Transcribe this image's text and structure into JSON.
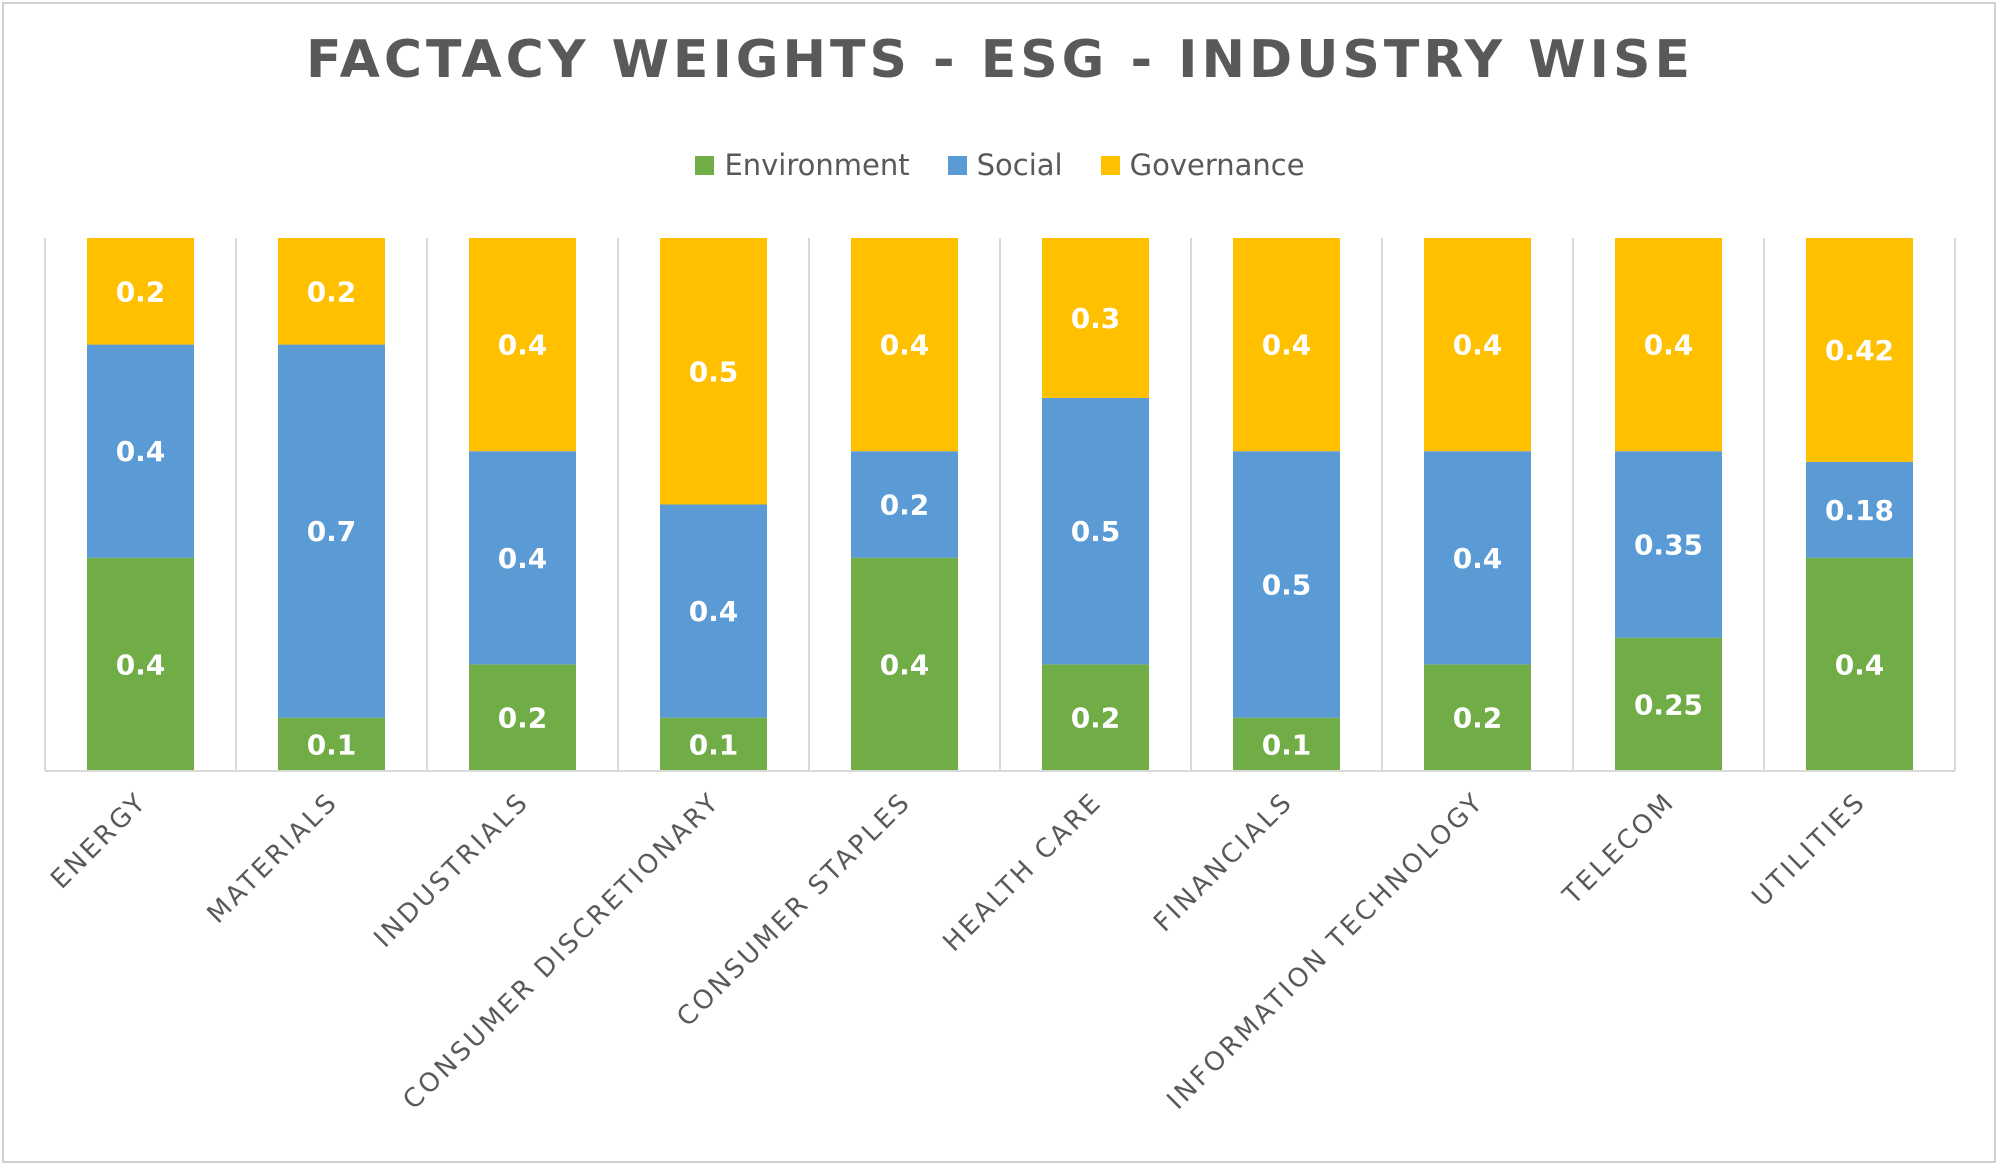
{
  "chart_data": {
    "type": "bar",
    "stacked": true,
    "title": "FACTACY WEIGHTS - ESG - INDUSTRY WISE",
    "categories": [
      "ENERGY",
      "MATERIALS",
      "INDUSTRIALS",
      "CONSUMER DISCRETIONARY",
      "CONSUMER STAPLES",
      "HEALTH CARE",
      "FINANCIALS",
      "INFORMATION TECHNOLOGY",
      "TELECOM",
      "UTILITIES"
    ],
    "series": [
      {
        "name": "Environment",
        "color": "#70ad47",
        "values": [
          0.4,
          0.1,
          0.2,
          0.1,
          0.4,
          0.2,
          0.1,
          0.2,
          0.25,
          0.4
        ]
      },
      {
        "name": "Social",
        "color": "#5b9bd5",
        "values": [
          0.4,
          0.7,
          0.4,
          0.4,
          0.2,
          0.5,
          0.5,
          0.4,
          0.35,
          0.18
        ]
      },
      {
        "name": "Governance",
        "color": "#ffc000",
        "values": [
          0.2,
          0.2,
          0.4,
          0.5,
          0.4,
          0.3,
          0.4,
          0.4,
          0.4,
          0.42
        ]
      }
    ],
    "ylim": [
      0,
      1
    ],
    "grid": "vertical category separators",
    "legend": "top-center",
    "xlabel": "",
    "ylabel": ""
  }
}
